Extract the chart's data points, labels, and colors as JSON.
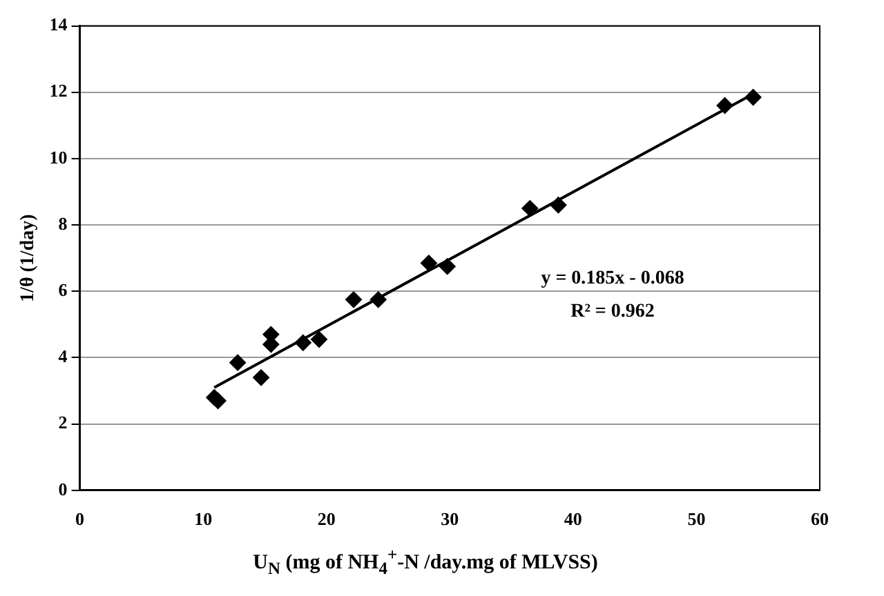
{
  "chart_data": {
    "type": "scatter",
    "xlabel": "U$_{N}$ (mg of NH$_{4}$$^{+}$-N /day.mg of MLVSS)",
    "ylabel": "1/θ (1/day)",
    "annotations": [
      "y = 0.185x - 0.068",
      "R² = 0.962"
    ],
    "xlim": [
      0,
      60
    ],
    "xticks": [
      0,
      10,
      20,
      30,
      40,
      50,
      60
    ],
    "ylim": [
      0,
      14
    ],
    "yticks": [
      0,
      2,
      4,
      6,
      8,
      10,
      12,
      14
    ],
    "grid": "y",
    "legend": false,
    "marker": "diamond",
    "series": [
      {
        "color": "#000000",
        "x": [
          10.9,
          11.2,
          12.8,
          14.7,
          15.5,
          15.5,
          18.1,
          19.4,
          22.2,
          24.2,
          28.3,
          29.8,
          36.5,
          38.8,
          52.3,
          54.6
        ],
        "values": [
          2.8,
          2.7,
          3.85,
          3.4,
          4.7,
          4.4,
          4.45,
          4.55,
          5.75,
          5.75,
          6.85,
          6.75,
          8.5,
          8.6,
          11.6,
          11.85
        ]
      },
      {
        "type": "line",
        "color": "#000000",
        "marker": "none",
        "x": [
          10.9,
          54.6
        ],
        "values": [
          3.1,
          11.95
        ]
      }
    ]
  }
}
